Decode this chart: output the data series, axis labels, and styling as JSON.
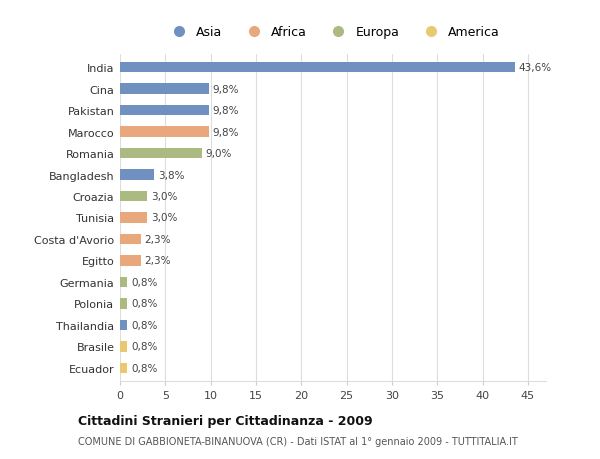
{
  "categories": [
    "India",
    "Cina",
    "Pakistan",
    "Marocco",
    "Romania",
    "Bangladesh",
    "Croazia",
    "Tunisia",
    "Costa d'Avorio",
    "Egitto",
    "Germania",
    "Polonia",
    "Thailandia",
    "Brasile",
    "Ecuador"
  ],
  "values": [
    43.6,
    9.8,
    9.8,
    9.8,
    9.0,
    3.8,
    3.0,
    3.0,
    2.3,
    2.3,
    0.8,
    0.8,
    0.8,
    0.8,
    0.8
  ],
  "labels": [
    "43,6%",
    "9,8%",
    "9,8%",
    "9,8%",
    "9,0%",
    "3,8%",
    "3,0%",
    "3,0%",
    "2,3%",
    "2,3%",
    "0,8%",
    "0,8%",
    "0,8%",
    "0,8%",
    "0,8%"
  ],
  "colors": [
    "#7090c0",
    "#7090c0",
    "#7090c0",
    "#e8a87c",
    "#aaba80",
    "#7090c0",
    "#aaba80",
    "#e8a87c",
    "#e8a87c",
    "#e8a87c",
    "#aaba80",
    "#aaba80",
    "#7090c0",
    "#e8c870",
    "#e8c870"
  ],
  "legend_labels": [
    "Asia",
    "Africa",
    "Europa",
    "America"
  ],
  "legend_colors": [
    "#7090c0",
    "#e8a87c",
    "#aaba80",
    "#e8c870"
  ],
  "title": "Cittadini Stranieri per Cittadinanza - 2009",
  "subtitle": "COMUNE DI GABBIONETA-BINANUOVA (CR) - Dati ISTAT al 1° gennaio 2009 - TUTTITALIA.IT",
  "xlim": [
    0,
    47
  ],
  "xticks": [
    0,
    5,
    10,
    15,
    20,
    25,
    30,
    35,
    40,
    45
  ],
  "background_color": "#ffffff",
  "grid_color": "#dddddd",
  "bar_height": 0.5
}
